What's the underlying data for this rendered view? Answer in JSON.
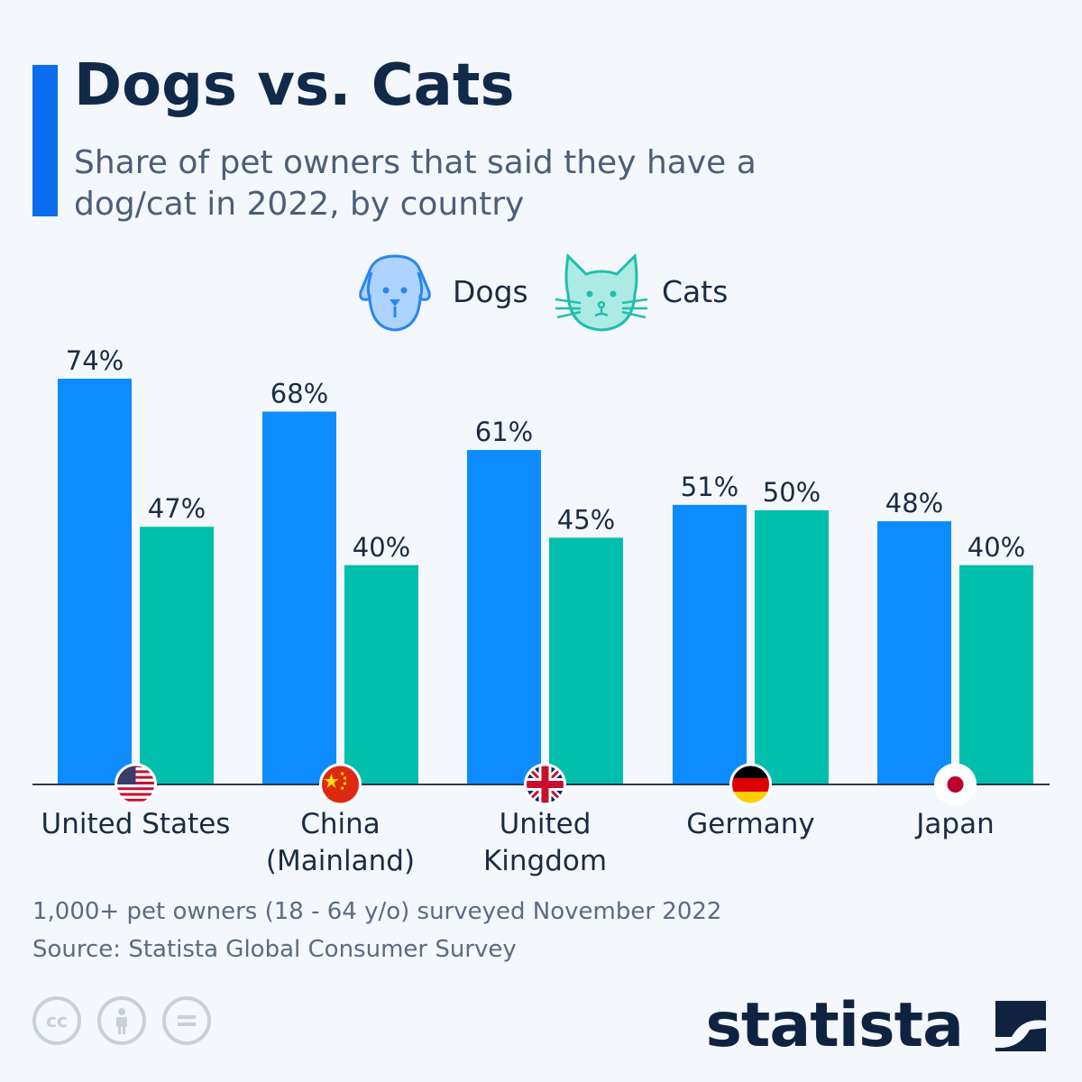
{
  "header": {
    "title": "Dogs vs. Cats",
    "subtitle": "Share of pet owners that said they have a dog/cat in 2022, by country"
  },
  "legend": {
    "dogs": "Dogs",
    "cats": "Cats"
  },
  "chart_data": {
    "type": "bar",
    "categories": [
      "United States",
      "China (Mainland)",
      "United Kingdom",
      "Germany",
      "Japan"
    ],
    "category_lines": [
      [
        "United States"
      ],
      [
        "China",
        "(Mainland)"
      ],
      [
        "United",
        "Kingdom"
      ],
      [
        "Germany"
      ],
      [
        "Japan"
      ]
    ],
    "flags": [
      "us-flag-icon",
      "china-flag-icon",
      "uk-flag-icon",
      "germany-flag-icon",
      "japan-flag-icon"
    ],
    "series": [
      {
        "name": "Dogs",
        "values": [
          74,
          68,
          61,
          51,
          48
        ],
        "color": "#0d8cff"
      },
      {
        "name": "Cats",
        "values": [
          47,
          40,
          45,
          50,
          40
        ],
        "color": "#00bfad"
      }
    ],
    "value_suffix": "%",
    "ylim": [
      0,
      74
    ],
    "grid": false,
    "legend_position": "top-center"
  },
  "footer": {
    "note": "1,000+ pet owners (18 - 64 y/o) surveyed November 2022",
    "source": "Source: Statista Global Consumer Survey",
    "brand": "statista"
  },
  "colors": {
    "accent": "#0b6cf0",
    "dogs": "#0d8cff",
    "cats": "#00bfad",
    "title": "#112a4a"
  }
}
